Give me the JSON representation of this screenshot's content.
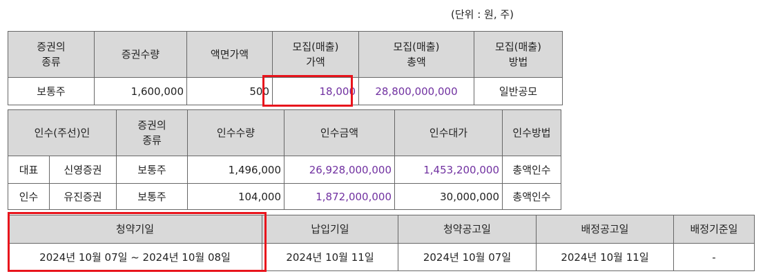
{
  "unit_note": "(단위 : 원, 주)",
  "offering": {
    "headers": [
      [
        "증권의",
        "종류"
      ],
      [
        "증권수량"
      ],
      [
        "액면가액"
      ],
      [
        "모집(매출)",
        "가액"
      ],
      [
        "모집(매출)",
        "총액"
      ],
      [
        "모집(매출)",
        "방법"
      ]
    ],
    "row": [
      "보통주",
      "1,600,000",
      "500",
      "18,000",
      "28,800,000,000",
      "일반공모"
    ]
  },
  "underwriting": {
    "headers": {
      "underwriter": "인수(주선)인",
      "type": [
        "증권의",
        "종류"
      ],
      "qty": "인수수량",
      "amount": "인수금액",
      "fee": "인수대가",
      "method": "인수방법"
    },
    "rows": [
      [
        "대표",
        "신영증권",
        "보통주",
        "1,496,000",
        "26,928,000,000",
        "1,453,200,000",
        "총액인수"
      ],
      [
        "인수",
        "유진증권",
        "보통주",
        "104,000",
        "1,872,000,000",
        "30,000,000",
        "총액인수"
      ]
    ]
  },
  "schedule": {
    "headers": [
      "청약기일",
      "납입기일",
      "청약공고일",
      "배정공고일",
      "배정기준일"
    ],
    "row": [
      "2024년 10월 07일 ~ 2024년 10월 08일",
      "2024년 10월 11일",
      "2024년 10월 07일",
      "2024년 10월 11일",
      "-"
    ]
  },
  "colors": {
    "header_bg": "#d9d9d9",
    "amount_text": "#7030a0",
    "highlight_border": "#e8141c"
  }
}
